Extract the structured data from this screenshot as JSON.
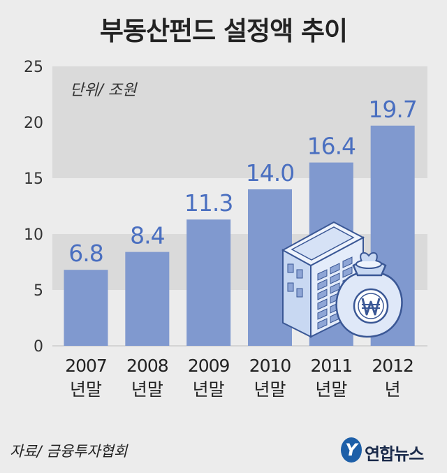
{
  "chart_data": {
    "type": "bar",
    "title": "부동산펀드 설정액 추이",
    "unit_label": "단위/ 조원",
    "categories": [
      [
        "2007",
        "년말"
      ],
      [
        "2008",
        "년말"
      ],
      [
        "2009",
        "년말"
      ],
      [
        "2010",
        "년말"
      ],
      [
        "2011",
        "년말"
      ],
      [
        "2012",
        "년"
      ]
    ],
    "values": [
      6.8,
      8.4,
      11.3,
      14.0,
      16.4,
      19.7
    ],
    "value_labels": [
      "6.8",
      "8.4",
      "11.3",
      "14.0",
      "16.4",
      "19.7"
    ],
    "ylim": [
      0,
      25
    ],
    "yticks": [
      "0",
      "5",
      "10",
      "15",
      "20",
      "25"
    ],
    "ytick_values": [
      0,
      5,
      10,
      15,
      20,
      25
    ],
    "bar_color": "#8099cf",
    "label_color": "#4a6fc0",
    "band_color": "#dadada",
    "grid": true,
    "illustration": "building-and-money-bag-icon"
  },
  "footer": {
    "source": "자료/ 금융투자협회",
    "brand": "연합뉴스"
  }
}
